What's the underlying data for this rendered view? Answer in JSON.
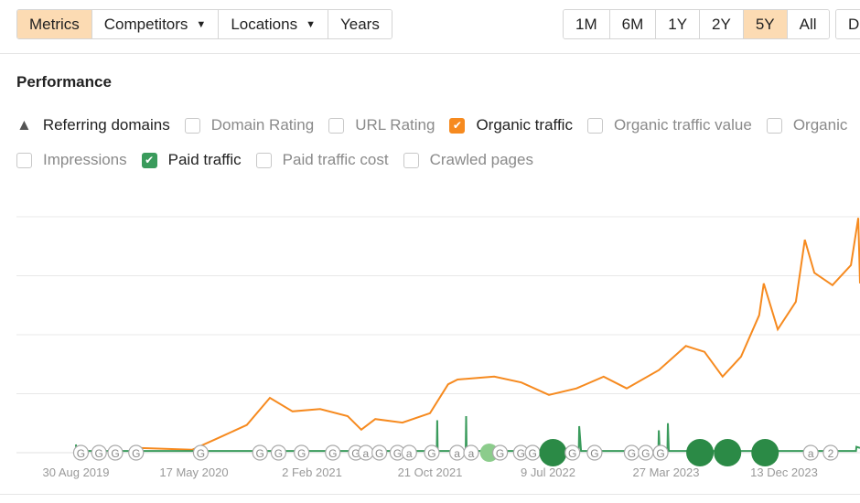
{
  "toolbar": {
    "tabs": [
      {
        "label": "Metrics",
        "active": true
      },
      {
        "label": "Competitors",
        "dropdown": true
      },
      {
        "label": "Locations",
        "dropdown": true
      },
      {
        "label": "Years"
      }
    ],
    "ranges": [
      {
        "label": "1M"
      },
      {
        "label": "6M"
      },
      {
        "label": "1Y"
      },
      {
        "label": "2Y"
      },
      {
        "label": "5Y",
        "active": true
      },
      {
        "label": "All"
      }
    ],
    "cut_off_button": "D"
  },
  "performance": {
    "title": "Performance",
    "referring_domains": "Referring domains",
    "metrics_row1": [
      {
        "label": "Domain Rating",
        "checked": false
      },
      {
        "label": "URL Rating",
        "checked": false
      },
      {
        "label": "Organic traffic",
        "checked": true,
        "color": "#f68a1f"
      },
      {
        "label": "Organic traffic value",
        "checked": false
      },
      {
        "label": "Organic",
        "checked": false
      }
    ],
    "metrics_row2": [
      {
        "label": "Impressions",
        "checked": false
      },
      {
        "label": "Paid traffic",
        "checked": true,
        "color": "#3a9b5c"
      },
      {
        "label": "Paid traffic cost",
        "checked": false
      },
      {
        "label": "Crawled pages",
        "checked": false
      }
    ]
  },
  "chart_data": {
    "type": "line",
    "x_tick_labels": [
      "30 Aug 2019",
      "17 May 2020",
      "2 Feb 2021",
      "21 Oct 2021",
      "9 Jul 2022",
      "27 Mar 2023",
      "13 Dec 2023"
    ],
    "xlim": [
      "2019-07-25",
      "2024-05-29"
    ],
    "ylim": [
      0,
      4
    ],
    "grid": true,
    "y_axis_labels_shown": false,
    "series": [
      {
        "name": "Organic traffic",
        "color": "#f68a1f",
        "points": [
          [
            "2020-01-13",
            0.08
          ],
          [
            "2020-05-13",
            0.05
          ],
          [
            "2020-07-13",
            0.26
          ],
          [
            "2020-09-11",
            0.47
          ],
          [
            "2020-11-01",
            0.93
          ],
          [
            "2020-12-21",
            0.7
          ],
          [
            "2021-02-20",
            0.74
          ],
          [
            "2021-04-22",
            0.62
          ],
          [
            "2021-05-22",
            0.39
          ],
          [
            "2021-06-22",
            0.57
          ],
          [
            "2021-08-21",
            0.51
          ],
          [
            "2021-10-21",
            0.67
          ],
          [
            "2021-11-30",
            1.16
          ],
          [
            "2021-12-21",
            1.24
          ],
          [
            "2022-03-12",
            1.29
          ],
          [
            "2022-05-11",
            1.19
          ],
          [
            "2022-07-11",
            0.98
          ],
          [
            "2022-09-10",
            1.09
          ],
          [
            "2022-11-09",
            1.29
          ],
          [
            "2022-12-30",
            1.09
          ],
          [
            "2023-03-11",
            1.4
          ],
          [
            "2023-05-10",
            1.81
          ],
          [
            "2023-06-20",
            1.71
          ],
          [
            "2023-07-30",
            1.29
          ],
          [
            "2023-09-09",
            1.63
          ],
          [
            "2023-10-19",
            2.33
          ],
          [
            "2023-10-29",
            2.87
          ],
          [
            "2023-11-29",
            2.09
          ],
          [
            "2024-01-08",
            2.56
          ],
          [
            "2024-01-28",
            3.61
          ],
          [
            "2024-02-18",
            3.05
          ],
          [
            "2024-03-29",
            2.84
          ],
          [
            "2024-05-09",
            3.18
          ],
          [
            "2024-05-25",
            3.98
          ],
          [
            "2024-05-29",
            2.87
          ]
        ]
      },
      {
        "name": "Paid traffic",
        "color": "#3a9b5c",
        "points": [
          [
            "2019-08-30",
            0.14
          ],
          [
            "2019-08-31",
            0.03
          ],
          [
            "2021-06-01",
            0.03
          ],
          [
            "2021-06-02",
            0.1
          ],
          [
            "2021-06-03",
            0.03
          ],
          [
            "2021-11-05",
            0.03
          ],
          [
            "2021-11-06",
            0.55
          ],
          [
            "2021-11-07",
            0.03
          ],
          [
            "2022-01-08",
            0.03
          ],
          [
            "2022-01-09",
            0.62
          ],
          [
            "2022-01-10",
            0.03
          ],
          [
            "2022-09-15",
            0.03
          ],
          [
            "2022-09-16",
            0.45
          ],
          [
            "2022-09-20",
            0.03
          ],
          [
            "2023-03-10",
            0.03
          ],
          [
            "2023-03-11",
            0.38
          ],
          [
            "2023-03-13",
            0.03
          ],
          [
            "2023-03-30",
            0.03
          ],
          [
            "2023-03-31",
            0.5
          ],
          [
            "2023-04-02",
            0.03
          ],
          [
            "2024-05-20",
            0.03
          ],
          [
            "2024-05-21",
            0.1
          ],
          [
            "2024-05-29",
            0.08
          ]
        ]
      }
    ],
    "annotations": [
      {
        "date": "2019-09-10",
        "label": "G"
      },
      {
        "date": "2019-10-20",
        "label": "G"
      },
      {
        "date": "2019-11-25",
        "label": "G"
      },
      {
        "date": "2020-01-10",
        "label": "G"
      },
      {
        "date": "2020-06-01",
        "label": "G"
      },
      {
        "date": "2020-10-10",
        "label": "G"
      },
      {
        "date": "2020-11-20",
        "label": "G"
      },
      {
        "date": "2021-01-10",
        "label": "G"
      },
      {
        "date": "2021-03-20",
        "label": "G"
      },
      {
        "date": "2021-05-10",
        "label": "G"
      },
      {
        "date": "2021-06-01",
        "label": "a"
      },
      {
        "date": "2021-07-01",
        "label": "G"
      },
      {
        "date": "2021-08-10",
        "label": "G"
      },
      {
        "date": "2021-09-05",
        "label": "a"
      },
      {
        "date": "2021-10-25",
        "label": "G"
      },
      {
        "date": "2021-12-20",
        "label": "a"
      },
      {
        "date": "2022-01-20",
        "label": "a"
      },
      {
        "date": "2022-03-01",
        "label": "G",
        "style": "light-green"
      },
      {
        "date": "2022-03-25",
        "label": "G"
      },
      {
        "date": "2022-05-10",
        "label": "G"
      },
      {
        "date": "2022-06-05",
        "label": "G"
      },
      {
        "date": "2022-07-20",
        "label": "G",
        "style": "dark-green"
      },
      {
        "date": "2022-09-01",
        "label": "G"
      },
      {
        "date": "2022-10-20",
        "label": "G"
      },
      {
        "date": "2023-01-10",
        "label": "G"
      },
      {
        "date": "2023-02-10",
        "label": "G"
      },
      {
        "date": "2023-03-15",
        "label": "G"
      },
      {
        "date": "2023-06-10",
        "label": "a",
        "style": "dark-green"
      },
      {
        "date": "2023-08-10",
        "label": "G",
        "style": "dark-green"
      },
      {
        "date": "2023-11-01",
        "label": "G",
        "style": "dark-green"
      },
      {
        "date": "2024-02-10",
        "label": "a"
      },
      {
        "date": "2024-03-25",
        "label": "2"
      }
    ]
  }
}
